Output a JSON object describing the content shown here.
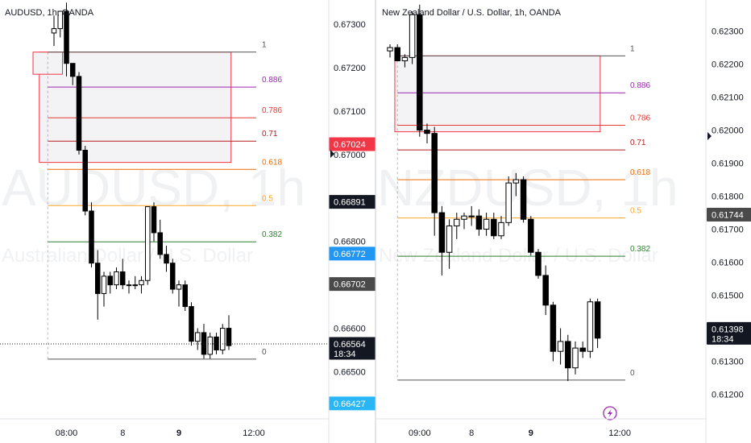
{
  "chart_data": [
    {
      "type": "candlestick",
      "title": "AUDUSD, 1h, OANDA",
      "watermark": "AUDUSD, 1h",
      "watermark_sub": "Australian Dollar / U.S. Dollar",
      "ylim": [
        0.6641,
        0.6733
      ],
      "y_ticks": [
        {
          "v": 0.673,
          "label": "0.67300"
        },
        {
          "v": 0.672,
          "label": "0.67200"
        },
        {
          "v": 0.671,
          "label": "0.67100"
        },
        {
          "v": 0.67,
          "label": "0.67000"
        },
        {
          "v": 0.668,
          "label": "0.66800"
        },
        {
          "v": 0.666,
          "label": "0.66600"
        },
        {
          "v": 0.665,
          "label": "0.66500"
        }
      ],
      "x_ticks": [
        {
          "i": 2,
          "label": "08:00",
          "bold": false
        },
        {
          "i": 11,
          "label": "8",
          "bold": false
        },
        {
          "i": 20,
          "label": "9",
          "bold": true
        },
        {
          "i": 32,
          "label": "12:00",
          "bold": false
        }
      ],
      "price_tags": [
        {
          "v": 0.67024,
          "label": "0.67024",
          "color": "#f23645",
          "sub": ""
        },
        {
          "v": 0.66891,
          "label": "0.66891",
          "color": "#131722",
          "sub": ""
        },
        {
          "v": 0.66772,
          "label": "0.66772",
          "color": "#2196f3",
          "sub": ""
        },
        {
          "v": 0.66702,
          "label": "0.66702",
          "color": "#4a4a4a",
          "sub": ""
        },
        {
          "v": 0.66564,
          "label": "0.66564",
          "color": "#131722",
          "sub": "18:34"
        },
        {
          "v": 0.66427,
          "label": "0.66427",
          "color": "#29b6f6",
          "sub": ""
        }
      ],
      "last_price": 0.66564,
      "fib": {
        "start_index": -1,
        "end_index": 26,
        "high": 0.67236,
        "low": 0.66529,
        "levels": [
          {
            "r": 1,
            "label": "1",
            "color": "#555555"
          },
          {
            "r": 0.886,
            "label": "0.886",
            "color": "#9c27b0"
          },
          {
            "r": 0.786,
            "label": "0.786",
            "color": "#e53935"
          },
          {
            "r": 0.71,
            "label": "0.71",
            "color": "#b71c1c"
          },
          {
            "r": 0.618,
            "label": "0.618",
            "color": "#ef6c00"
          },
          {
            "r": 0.5,
            "label": "0.5",
            "color": "#f9a825"
          },
          {
            "r": 0.382,
            "label": "0.382",
            "color": "#2e7d32"
          },
          {
            "r": 0,
            "label": "0",
            "color": "#555555"
          }
        ]
      },
      "zones": [
        {
          "from_index": -2,
          "to_index": 28,
          "top": 0.67236,
          "bottom": 0.66982
        },
        {
          "from_index": -3,
          "to_index": 1,
          "top": 0.67236,
          "bottom": 0.67185
        }
      ],
      "candles": [
        {
          "o": 0.6728,
          "h": 0.6732,
          "l": 0.6725,
          "c": 0.6729
        },
        {
          "o": 0.6729,
          "h": 0.6733,
          "l": 0.6727,
          "c": 0.6733
        },
        {
          "o": 0.6733,
          "h": 0.6735,
          "l": 0.6718,
          "c": 0.6721
        },
        {
          "o": 0.6721,
          "h": 0.6721,
          "l": 0.6716,
          "c": 0.6718
        },
        {
          "o": 0.6718,
          "h": 0.6719,
          "l": 0.67,
          "c": 0.6701
        },
        {
          "o": 0.6701,
          "h": 0.6702,
          "l": 0.6686,
          "c": 0.6687
        },
        {
          "o": 0.6687,
          "h": 0.6689,
          "l": 0.6674,
          "c": 0.6675
        },
        {
          "o": 0.6675,
          "h": 0.6678,
          "l": 0.6662,
          "c": 0.6668
        },
        {
          "o": 0.6668,
          "h": 0.6673,
          "l": 0.6665,
          "c": 0.6672
        },
        {
          "o": 0.6672,
          "h": 0.6673,
          "l": 0.6668,
          "c": 0.667
        },
        {
          "o": 0.667,
          "h": 0.6674,
          "l": 0.6669,
          "c": 0.6673
        },
        {
          "o": 0.6673,
          "h": 0.6676,
          "l": 0.6669,
          "c": 0.667
        },
        {
          "o": 0.667,
          "h": 0.6671,
          "l": 0.6668,
          "c": 0.667
        },
        {
          "o": 0.667,
          "h": 0.6672,
          "l": 0.6669,
          "c": 0.667
        },
        {
          "o": 0.667,
          "h": 0.6672,
          "l": 0.6668,
          "c": 0.6671
        },
        {
          "o": 0.6671,
          "h": 0.6688,
          "l": 0.667,
          "c": 0.6688
        },
        {
          "o": 0.6688,
          "h": 0.6689,
          "l": 0.668,
          "c": 0.6682
        },
        {
          "o": 0.6682,
          "h": 0.6685,
          "l": 0.6676,
          "c": 0.6677
        },
        {
          "o": 0.6677,
          "h": 0.6679,
          "l": 0.6673,
          "c": 0.6675
        },
        {
          "o": 0.6675,
          "h": 0.6676,
          "l": 0.6668,
          "c": 0.6669
        },
        {
          "o": 0.6669,
          "h": 0.6671,
          "l": 0.6665,
          "c": 0.667
        },
        {
          "o": 0.667,
          "h": 0.6671,
          "l": 0.6664,
          "c": 0.6665
        },
        {
          "o": 0.6665,
          "h": 0.6666,
          "l": 0.6656,
          "c": 0.6657
        },
        {
          "o": 0.6657,
          "h": 0.666,
          "l": 0.6655,
          "c": 0.6659
        },
        {
          "o": 0.6659,
          "h": 0.6661,
          "l": 0.6653,
          "c": 0.6654
        },
        {
          "o": 0.6654,
          "h": 0.6659,
          "l": 0.6653,
          "c": 0.6658
        },
        {
          "o": 0.6658,
          "h": 0.6659,
          "l": 0.6654,
          "c": 0.6655
        },
        {
          "o": 0.6655,
          "h": 0.6661,
          "l": 0.6654,
          "c": 0.666
        },
        {
          "o": 0.666,
          "h": 0.6663,
          "l": 0.6655,
          "c": 0.6656
        }
      ]
    },
    {
      "type": "candlestick",
      "title": "New Zealand Dollar / U.S. Dollar, 1h, OANDA",
      "watermark": "NZDUSD, 1h",
      "watermark_sub": "New Zealand Dollar / U.S. Dollar",
      "ylim": [
        0.6115,
        0.6236
      ],
      "y_ticks": [
        {
          "v": 0.623,
          "label": "0.62300"
        },
        {
          "v": 0.622,
          "label": "0.62200"
        },
        {
          "v": 0.621,
          "label": "0.62100"
        },
        {
          "v": 0.62,
          "label": "0.62000"
        },
        {
          "v": 0.619,
          "label": "0.61900"
        },
        {
          "v": 0.618,
          "label": "0.61800"
        },
        {
          "v": 0.617,
          "label": "0.61700"
        },
        {
          "v": 0.616,
          "label": "0.61600"
        },
        {
          "v": 0.615,
          "label": "0.61500"
        },
        {
          "v": 0.613,
          "label": "0.61300"
        },
        {
          "v": 0.612,
          "label": "0.61200"
        }
      ],
      "x_ticks": [
        {
          "i": 4,
          "label": "09:00",
          "bold": false
        },
        {
          "i": 11,
          "label": "8",
          "bold": false
        },
        {
          "i": 19,
          "label": "9",
          "bold": true
        },
        {
          "i": 31,
          "label": "12:00",
          "bold": false
        }
      ],
      "price_tags": [
        {
          "v": 0.61744,
          "label": "0.61744",
          "color": "#4a4a4a",
          "sub": ""
        },
        {
          "v": 0.61398,
          "label": "0.61398",
          "color": "#131722",
          "sub": "18:34"
        }
      ],
      "last_price": 0.61398,
      "fib": {
        "start_index": 1,
        "end_index": 25,
        "high": 0.62225,
        "low": 0.61243,
        "levels": [
          {
            "r": 1,
            "label": "1",
            "color": "#555555"
          },
          {
            "r": 0.886,
            "label": "0.886",
            "color": "#9c27b0"
          },
          {
            "r": 0.786,
            "label": "0.786",
            "color": "#e53935"
          },
          {
            "r": 0.71,
            "label": "0.71",
            "color": "#b71c1c"
          },
          {
            "r": 0.618,
            "label": "0.618",
            "color": "#ef6c00"
          },
          {
            "r": 0.5,
            "label": "0.5",
            "color": "#f9a825"
          },
          {
            "r": 0.382,
            "label": "0.382",
            "color": "#2e7d32"
          },
          {
            "r": 0,
            "label": "0",
            "color": "#555555"
          }
        ]
      },
      "zones": [
        {
          "from_index": 1,
          "to_index": 28,
          "top": 0.62225,
          "bottom": 0.61995
        }
      ],
      "candles": [
        {
          "o": 0.6224,
          "h": 0.6226,
          "l": 0.6222,
          "c": 0.6225
        },
        {
          "o": 0.6225,
          "h": 0.6226,
          "l": 0.6221,
          "c": 0.6221
        },
        {
          "o": 0.6221,
          "h": 0.6223,
          "l": 0.6219,
          "c": 0.6222
        },
        {
          "o": 0.6222,
          "h": 0.6236,
          "l": 0.622,
          "c": 0.6235
        },
        {
          "o": 0.6235,
          "h": 0.6238,
          "l": 0.6198,
          "c": 0.62
        },
        {
          "o": 0.62,
          "h": 0.6202,
          "l": 0.6196,
          "c": 0.6199
        },
        {
          "o": 0.6199,
          "h": 0.6201,
          "l": 0.6168,
          "c": 0.6175
        },
        {
          "o": 0.6175,
          "h": 0.6177,
          "l": 0.6156,
          "c": 0.6163
        },
        {
          "o": 0.6163,
          "h": 0.6173,
          "l": 0.6158,
          "c": 0.6171
        },
        {
          "o": 0.6171,
          "h": 0.6175,
          "l": 0.6167,
          "c": 0.6173
        },
        {
          "o": 0.6173,
          "h": 0.6175,
          "l": 0.617,
          "c": 0.6174
        },
        {
          "o": 0.6174,
          "h": 0.6177,
          "l": 0.6171,
          "c": 0.6174
        },
        {
          "o": 0.6174,
          "h": 0.6176,
          "l": 0.6168,
          "c": 0.617
        },
        {
          "o": 0.617,
          "h": 0.6175,
          "l": 0.6168,
          "c": 0.6173
        },
        {
          "o": 0.6173,
          "h": 0.6175,
          "l": 0.6167,
          "c": 0.6168
        },
        {
          "o": 0.6168,
          "h": 0.6174,
          "l": 0.6167,
          "c": 0.6172
        },
        {
          "o": 0.6172,
          "h": 0.6186,
          "l": 0.6171,
          "c": 0.6184
        },
        {
          "o": 0.6184,
          "h": 0.6187,
          "l": 0.618,
          "c": 0.6185
        },
        {
          "o": 0.6185,
          "h": 0.6186,
          "l": 0.6172,
          "c": 0.6173
        },
        {
          "o": 0.6173,
          "h": 0.6174,
          "l": 0.6162,
          "c": 0.6163
        },
        {
          "o": 0.6163,
          "h": 0.6164,
          "l": 0.6155,
          "c": 0.6156
        },
        {
          "o": 0.6156,
          "h": 0.6159,
          "l": 0.6144,
          "c": 0.6147
        },
        {
          "o": 0.6147,
          "h": 0.6148,
          "l": 0.613,
          "c": 0.6133
        },
        {
          "o": 0.6133,
          "h": 0.614,
          "l": 0.6129,
          "c": 0.6136
        },
        {
          "o": 0.6136,
          "h": 0.6138,
          "l": 0.6124,
          "c": 0.6128
        },
        {
          "o": 0.6128,
          "h": 0.6136,
          "l": 0.6126,
          "c": 0.6134
        },
        {
          "o": 0.6134,
          "h": 0.6136,
          "l": 0.6131,
          "c": 0.6133
        },
        {
          "o": 0.6133,
          "h": 0.6149,
          "l": 0.6131,
          "c": 0.6148
        },
        {
          "o": 0.6148,
          "h": 0.6149,
          "l": 0.6134,
          "c": 0.6137
        }
      ]
    }
  ],
  "colors": {
    "candle_up_fill": "#ffffff",
    "candle_down_fill": "#000000",
    "candle_outline": "#000000",
    "zone_fill": "#f3f3f5",
    "zone_border": "#f23645",
    "panel_divider": "#c8c9cc",
    "grid_text": "#131722"
  },
  "icons": {
    "lightning": "lightning-icon",
    "current_price_marker": "triangle-right-icon"
  }
}
